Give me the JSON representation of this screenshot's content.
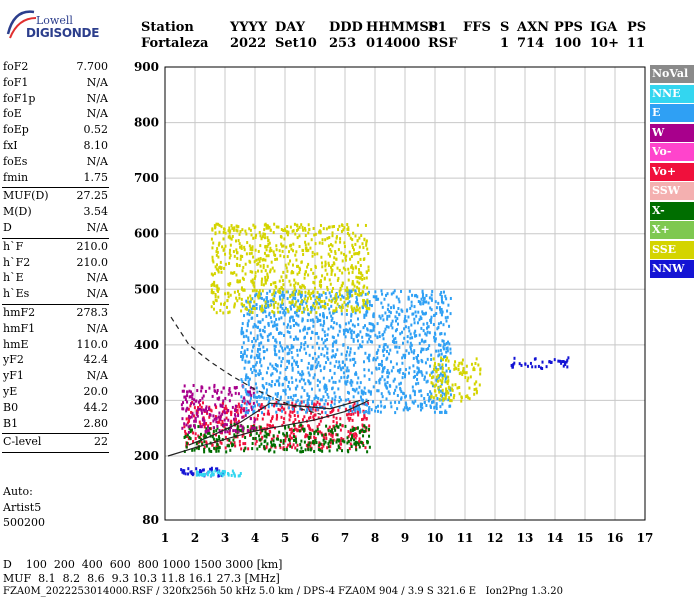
{
  "logo": {
    "line1": "Lowell",
    "line2": "DIGISONDE"
  },
  "header": {
    "labels": [
      "Station",
      "YYYY",
      "DAY",
      "DDD",
      "HHMMSS",
      "P1",
      "FFS",
      "S",
      "AXN",
      "PPS",
      "IGA",
      "PS"
    ],
    "values": [
      "Fortaleza",
      "2022",
      "Set10",
      "253",
      "014000",
      "RSF",
      "",
      "1",
      "714",
      "100",
      "10+",
      "11"
    ]
  },
  "params": [
    [
      {
        "name": "foF2",
        "value": "7.700"
      },
      {
        "name": "foF1",
        "value": "N/A"
      },
      {
        "name": "foF1p",
        "value": "N/A"
      },
      {
        "name": "foE",
        "value": "N/A"
      },
      {
        "name": "foEp",
        "value": "0.52"
      },
      {
        "name": "fxI",
        "value": "8.10"
      },
      {
        "name": "foEs",
        "value": "N/A"
      },
      {
        "name": "fmin",
        "value": "1.75"
      }
    ],
    [
      {
        "name": "MUF(D)",
        "value": "27.25"
      },
      {
        "name": "M(D)",
        "value": "3.54"
      },
      {
        "name": "D",
        "value": "N/A"
      }
    ],
    [
      {
        "name": "h`F",
        "value": "210.0"
      },
      {
        "name": "h`F2",
        "value": "210.0"
      },
      {
        "name": "h`E",
        "value": "N/A"
      },
      {
        "name": "h`Es",
        "value": "N/A"
      }
    ],
    [
      {
        "name": "hmF2",
        "value": "278.3"
      },
      {
        "name": "hmF1",
        "value": "N/A"
      },
      {
        "name": "hmE",
        "value": "110.0"
      },
      {
        "name": "yF2",
        "value": "42.4"
      },
      {
        "name": "yF1",
        "value": "N/A"
      },
      {
        "name": "yE",
        "value": "20.0"
      },
      {
        "name": "B0",
        "value": "44.2"
      },
      {
        "name": "B1",
        "value": "2.80"
      }
    ],
    [
      {
        "name": "C-level",
        "value": "22"
      }
    ]
  ],
  "auto": {
    "line1": "Auto:",
    "line2": "Artist5",
    "line3": "500200"
  },
  "legend": [
    {
      "label": "NoVal",
      "color": "#8a8a8a"
    },
    {
      "label": "NNE",
      "color": "#33d6f0"
    },
    {
      "label": "E",
      "color": "#2fa0f4"
    },
    {
      "label": "W",
      "color": "#a8008c"
    },
    {
      "label": "Vo-",
      "color": "#ff44cc"
    },
    {
      "label": "Vo+",
      "color": "#f0103c"
    },
    {
      "label": "SSW",
      "color": "#f4b0b0"
    },
    {
      "label": "X-",
      "color": "#006e00"
    },
    {
      "label": "X+",
      "color": "#7ec850"
    },
    {
      "label": "SSE",
      "color": "#d4d400"
    },
    {
      "label": "NNW",
      "color": "#1414d4"
    }
  ],
  "footer": {
    "d_label": "D",
    "d_values": "100  200  400  600  800 1000 1500 3000 [km]",
    "muf_label": "MUF",
    "muf_values": "8.1  8.2  8.6  9.3 10.3 11.8 16.1 27.3 [MHz]",
    "info": "FZA0M_2022253014000.RSF / 320fx256h 50 kHz 5.0 km / DPS-4 FZA0M 904 / 3.9 S 321.6 E   Ion2Png 1.3.20"
  },
  "chart_data": {
    "type": "scatter",
    "xlim": [
      1,
      17
    ],
    "ylim": [
      80,
      900
    ],
    "xticks": [
      "1",
      "2",
      "3",
      "4",
      "5",
      "6",
      "7",
      "8",
      "9",
      "10",
      "11",
      "12",
      "13",
      "14",
      "15",
      "16",
      "17"
    ],
    "yticks": [
      "80",
      "200",
      "300",
      "400",
      "500",
      "600",
      "700",
      "800",
      "900"
    ],
    "grid": true,
    "note": "y axis has a compressed lower segment between 80 and 200",
    "clusters": [
      {
        "mode": "Vo+",
        "x": [
          1.6,
          7.8
        ],
        "y": [
          215,
          300
        ]
      },
      {
        "mode": "X-",
        "x": [
          1.6,
          7.8
        ],
        "y": [
          210,
          260
        ]
      },
      {
        "mode": "W",
        "x": [
          1.5,
          4.0
        ],
        "y": [
          245,
          330
        ]
      },
      {
        "mode": "E",
        "x": [
          3.5,
          10.5
        ],
        "y": [
          280,
          500
        ]
      },
      {
        "mode": "SSE",
        "x": [
          2.5,
          7.8
        ],
        "y": [
          460,
          620
        ]
      },
      {
        "mode": "SSE",
        "x": [
          9.8,
          11.5
        ],
        "y": [
          300,
          380
        ]
      },
      {
        "mode": "NNW",
        "x": [
          12.5,
          14.5
        ],
        "y": [
          360,
          380
        ]
      },
      {
        "mode": "NNW",
        "x": [
          1.5,
          3.0
        ],
        "y": [
          165,
          180
        ]
      },
      {
        "mode": "NNE",
        "x": [
          2.0,
          3.5
        ],
        "y": [
          165,
          175
        ]
      }
    ],
    "curves": [
      {
        "style": "dashed",
        "x": [
          1.2,
          1.8,
          2.5,
          3.2,
          4.0,
          4.8,
          5.5,
          6.2
        ],
        "y": [
          450,
          400,
          370,
          345,
          320,
          300,
          285,
          275
        ]
      },
      {
        "style": "solid",
        "x": [
          1.1,
          2.0,
          3.0,
          4.0,
          5.0,
          6.0,
          7.0,
          7.8
        ],
        "y": [
          200,
          215,
          230,
          245,
          255,
          265,
          280,
          300
        ]
      },
      {
        "style": "solid",
        "x": [
          1.8,
          2.5,
          3.5,
          4.5,
          5.5,
          6.5,
          7.5
        ],
        "y": [
          220,
          235,
          260,
          295,
          290,
          285,
          300
        ]
      }
    ]
  }
}
